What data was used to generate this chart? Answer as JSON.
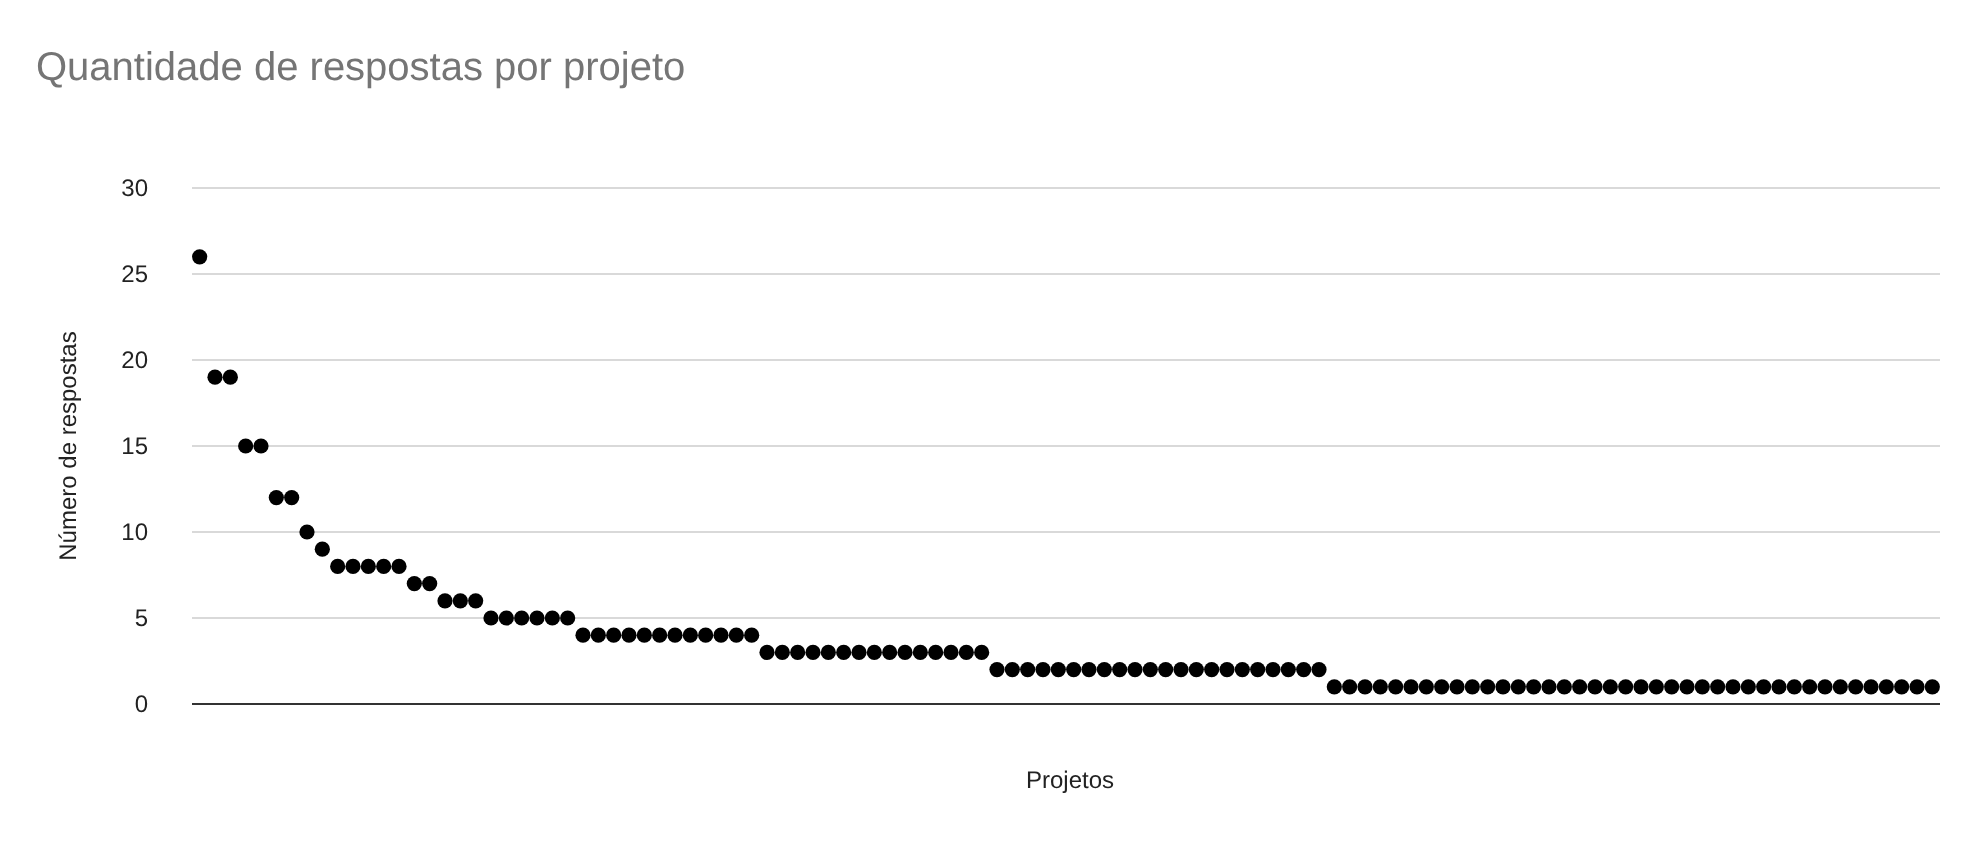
{
  "chart_data": {
    "type": "scatter",
    "title": "Quantidade de respostas por projeto",
    "xlabel": "Projetos",
    "ylabel": "Número de respostas",
    "categories": [
      null,
      null,
      null,
      null,
      null,
      null,
      null,
      null,
      null,
      null,
      null,
      null,
      null,
      null,
      null,
      null,
      null,
      null,
      null,
      null,
      null,
      null,
      null,
      null,
      null,
      null,
      null,
      null,
      null,
      null,
      null,
      null,
      null,
      null,
      null,
      null,
      null,
      null,
      null,
      null,
      null,
      null,
      null,
      null,
      null,
      null,
      null,
      null,
      null,
      null,
      null,
      null,
      null,
      null,
      null,
      null,
      null,
      null,
      null,
      null,
      null,
      null,
      null,
      null,
      null,
      null,
      null,
      null,
      null,
      null,
      null,
      null,
      null,
      null,
      null,
      null,
      null,
      null,
      null,
      null,
      null,
      null,
      null,
      null,
      null,
      null,
      null,
      null,
      null,
      null,
      null,
      null,
      null,
      null,
      null,
      null,
      null,
      null,
      null,
      null,
      null,
      null,
      null,
      null,
      null,
      null,
      null,
      null,
      null,
      null,
      null,
      null,
      null,
      null
    ],
    "series": [
      {
        "color": "#000000",
        "values": [
          26,
          19,
          19,
          15,
          15,
          12,
          12,
          10,
          9,
          8,
          8,
          8,
          8,
          8,
          7,
          7,
          6,
          6,
          6,
          5,
          5,
          5,
          5,
          5,
          5,
          4,
          4,
          4,
          4,
          4,
          4,
          4,
          4,
          4,
          4,
          4,
          4,
          3,
          3,
          3,
          3,
          3,
          3,
          3,
          3,
          3,
          3,
          3,
          3,
          3,
          3,
          3,
          2,
          2,
          2,
          2,
          2,
          2,
          2,
          2,
          2,
          2,
          2,
          2,
          2,
          2,
          2,
          2,
          2,
          2,
          2,
          2,
          2,
          2,
          1,
          1,
          1,
          1,
          1,
          1,
          1,
          1,
          1,
          1,
          1,
          1,
          1,
          1,
          1,
          1,
          1,
          1,
          1,
          1,
          1,
          1,
          1,
          1,
          1,
          1,
          1,
          1,
          1,
          1,
          1,
          1,
          1,
          1,
          1,
          1,
          1,
          1,
          1,
          1
        ]
      }
    ],
    "ylim": [
      0,
      30
    ],
    "yticks": [
      0,
      5,
      10,
      15,
      20,
      25,
      30
    ],
    "grid": "y",
    "marker": "circle"
  }
}
